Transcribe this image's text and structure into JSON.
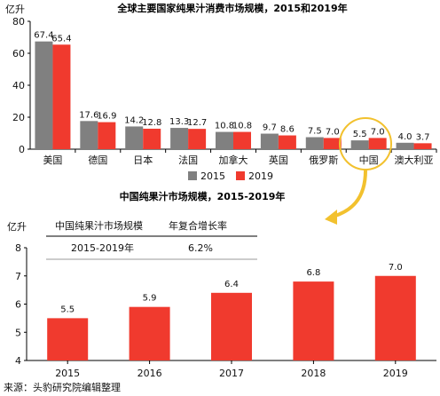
{
  "colors": {
    "series_2015": "#808080",
    "series_2019": "#f03a2e",
    "bar2": "#f03a2e",
    "highlight": "#f2c12e",
    "axis": "#000000"
  },
  "chart_data": [
    {
      "type": "bar",
      "title": "全球主要国家纯果汁消费市场规模，2015和2019年",
      "ylabel": "亿升",
      "ylim": [
        0,
        80
      ],
      "yticks": [
        0,
        20,
        40,
        60,
        80
      ],
      "grid": false,
      "legend_position": "bottom",
      "categories": [
        "美国",
        "德国",
        "日本",
        "法国",
        "加拿大",
        "英国",
        "俄罗斯",
        "中国",
        "澳大利亚"
      ],
      "series": [
        {
          "name": "2015",
          "values": [
            67.4,
            17.6,
            14.2,
            13.3,
            10.8,
            9.7,
            7.5,
            5.5,
            4.0
          ],
          "labels": [
            "67.4",
            "17.6",
            "14.2",
            "13.3",
            "10.8",
            "9.7",
            "7.5",
            "5.5",
            "4.0"
          ]
        },
        {
          "name": "2019",
          "values": [
            65.4,
            16.9,
            12.8,
            12.7,
            10.8,
            8.6,
            7.0,
            7.0,
            3.7
          ],
          "labels": [
            "65.4",
            "16.9",
            "12.8",
            "12.7",
            "10.8",
            "8.6",
            "7.0",
            "7.0",
            "3.7"
          ]
        }
      ],
      "highlight_category": "中国"
    },
    {
      "type": "bar",
      "title": "中国纯果汁市场规模，2015-2019年",
      "ylabel": "亿升",
      "ylim": [
        4,
        8
      ],
      "yticks": [
        4,
        5,
        6,
        7,
        8
      ],
      "grid": false,
      "categories": [
        "2015",
        "2016",
        "2017",
        "2018",
        "2019"
      ],
      "values": [
        5.5,
        5.9,
        6.4,
        6.8,
        7.0
      ],
      "value_labels": [
        "5.5",
        "5.9",
        "6.4",
        "6.8",
        "7.0"
      ],
      "inset_table": {
        "headers": [
          "中国纯果汁市场规模",
          "年复合增长率"
        ],
        "row": [
          "2015-2019年",
          "6.2%"
        ]
      }
    }
  ],
  "source": "来源：头豹研究院编辑整理"
}
